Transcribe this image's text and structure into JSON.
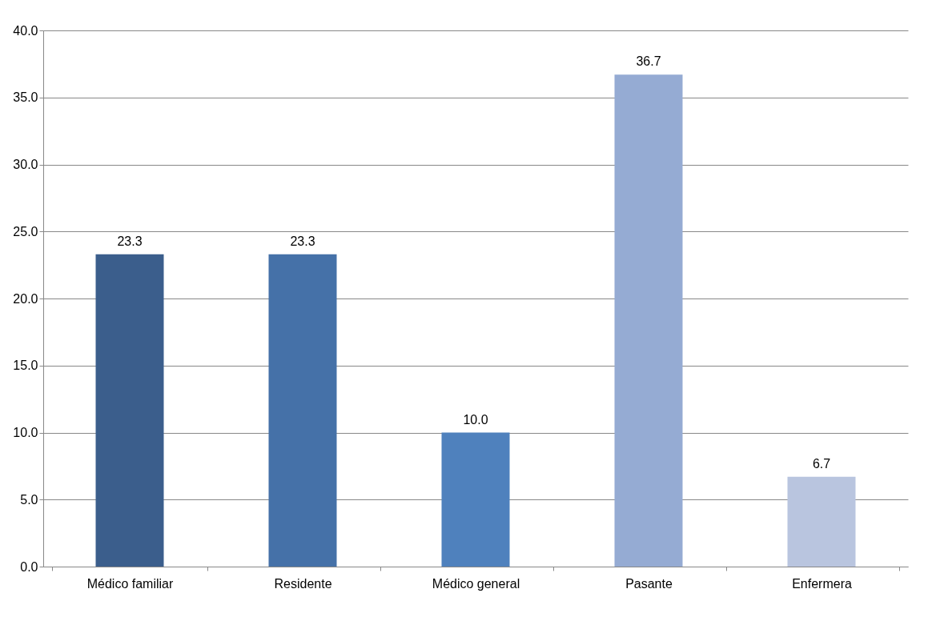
{
  "chart_data": {
    "type": "bar",
    "categories": [
      "Médico familiar",
      "Residente",
      "Médico general",
      "Pasante",
      "Enfermera"
    ],
    "values": [
      23.3,
      23.3,
      10.0,
      36.7,
      6.7
    ],
    "colors": [
      "#3b5e8c",
      "#4571a8",
      "#4f81bd",
      "#95abd3",
      "#b9c5df"
    ],
    "value_labels": [
      "23.3",
      "23.3",
      "10.0",
      "36.7",
      "6.7"
    ],
    "ylim": [
      0,
      40
    ],
    "yticks": [
      {
        "value": 0,
        "label": "0.0"
      },
      {
        "value": 5,
        "label": "5.0"
      },
      {
        "value": 10,
        "label": "10.0"
      },
      {
        "value": 15,
        "label": "15.0"
      },
      {
        "value": 20,
        "label": "20.0"
      },
      {
        "value": 25,
        "label": "25.0"
      },
      {
        "value": 30,
        "label": "30.0"
      },
      {
        "value": 35,
        "label": "35.0"
      },
      {
        "value": 40,
        "label": "40.0"
      }
    ],
    "grid": "y"
  }
}
